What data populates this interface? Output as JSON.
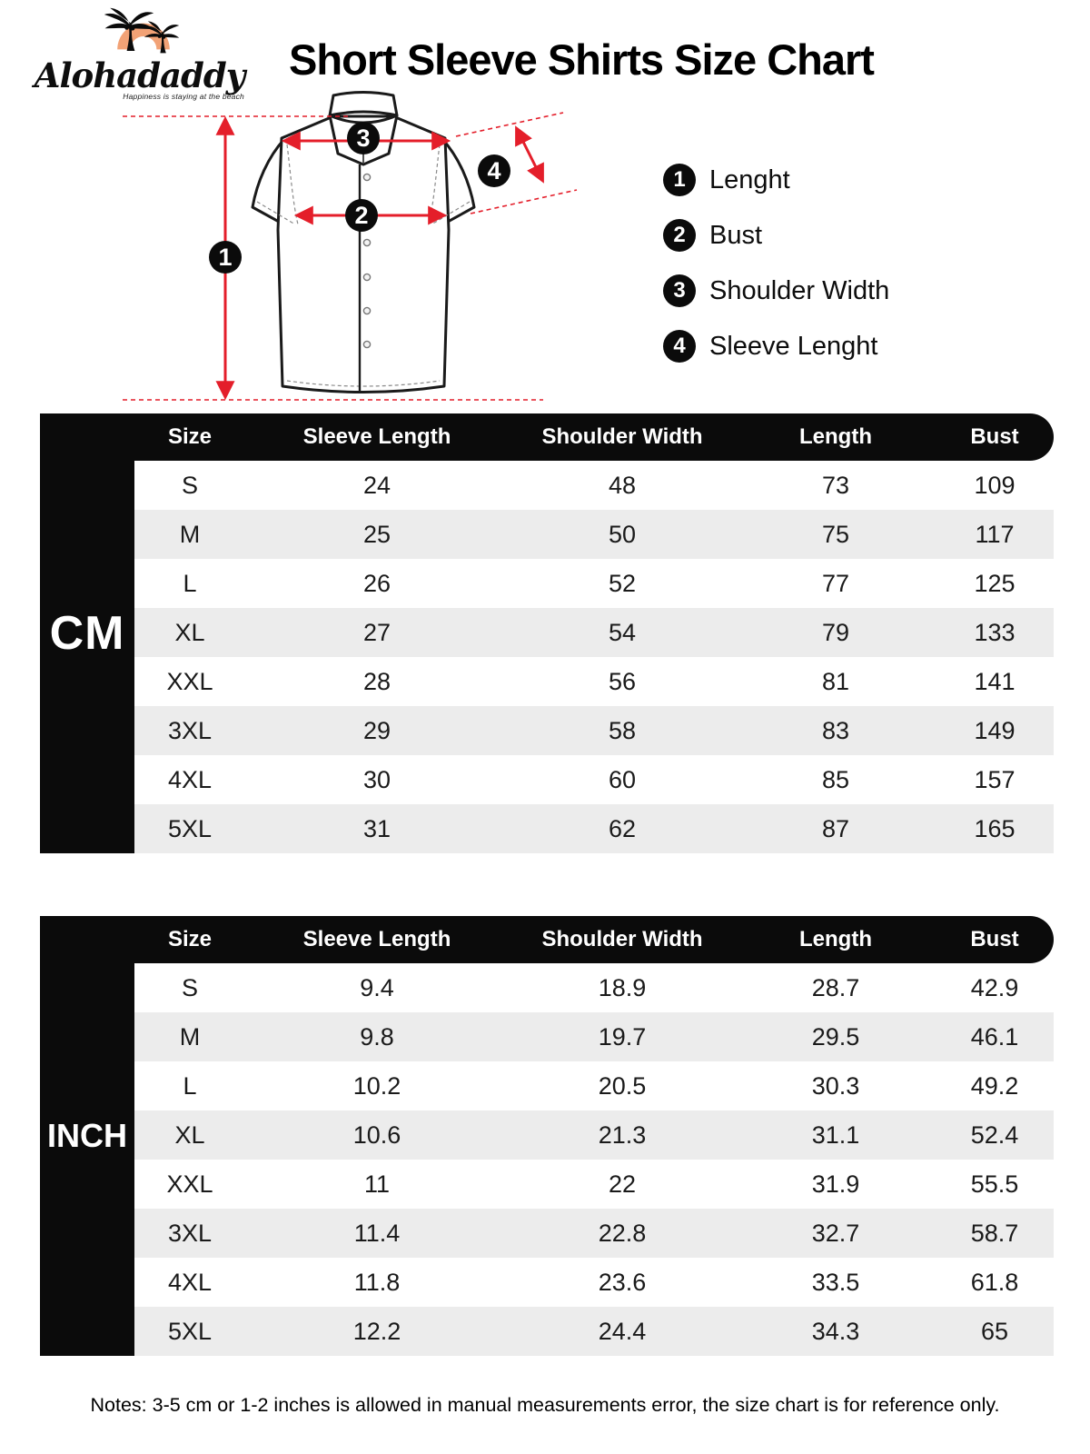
{
  "brand": {
    "name": "Alohadaddy",
    "tagline": "Happiness is staying at the beach"
  },
  "title": "Short Sleeve Shirts Size Chart",
  "legend": [
    {
      "num": "1",
      "label": "Lenght"
    },
    {
      "num": "2",
      "label": "Bust"
    },
    {
      "num": "3",
      "label": "Shoulder Width"
    },
    {
      "num": "4",
      "label": "Sleeve Lenght"
    }
  ],
  "tables": [
    {
      "unit": "CM",
      "columns": [
        "Size",
        "Sleeve Length",
        "Shoulder Width",
        "Length",
        "Bust"
      ],
      "rows": [
        [
          "S",
          "24",
          "48",
          "73",
          "109"
        ],
        [
          "M",
          "25",
          "50",
          "75",
          "117"
        ],
        [
          "L",
          "26",
          "52",
          "77",
          "125"
        ],
        [
          "XL",
          "27",
          "54",
          "79",
          "133"
        ],
        [
          "XXL",
          "28",
          "56",
          "81",
          "141"
        ],
        [
          "3XL",
          "29",
          "58",
          "83",
          "149"
        ],
        [
          "4XL",
          "30",
          "60",
          "85",
          "157"
        ],
        [
          "5XL",
          "31",
          "62",
          "87",
          "165"
        ]
      ]
    },
    {
      "unit": "INCH",
      "columns": [
        "Size",
        "Sleeve Length",
        "Shoulder Width",
        "Length",
        "Bust"
      ],
      "rows": [
        [
          "S",
          "9.4",
          "18.9",
          "28.7",
          "42.9"
        ],
        [
          "M",
          "9.8",
          "19.7",
          "29.5",
          "46.1"
        ],
        [
          "L",
          "10.2",
          "20.5",
          "30.3",
          "49.2"
        ],
        [
          "XL",
          "10.6",
          "21.3",
          "31.1",
          "52.4"
        ],
        [
          "XXL",
          "11",
          "22",
          "31.9",
          "55.5"
        ],
        [
          "3XL",
          "11.4",
          "22.8",
          "32.7",
          "58.7"
        ],
        [
          "4XL",
          "11.8",
          "23.6",
          "33.5",
          "61.8"
        ],
        [
          "5XL",
          "12.2",
          "24.4",
          "34.3",
          "65"
        ]
      ]
    }
  ],
  "notes": "Notes: 3-5 cm or 1-2 inches is allowed in manual measurements error, the size chart is for reference only.",
  "colors": {
    "accent_red": "#e41e2a",
    "sun_orange": "#f2a276",
    "row_alt": "#ececec",
    "ink_black": "#0b0b0b"
  }
}
